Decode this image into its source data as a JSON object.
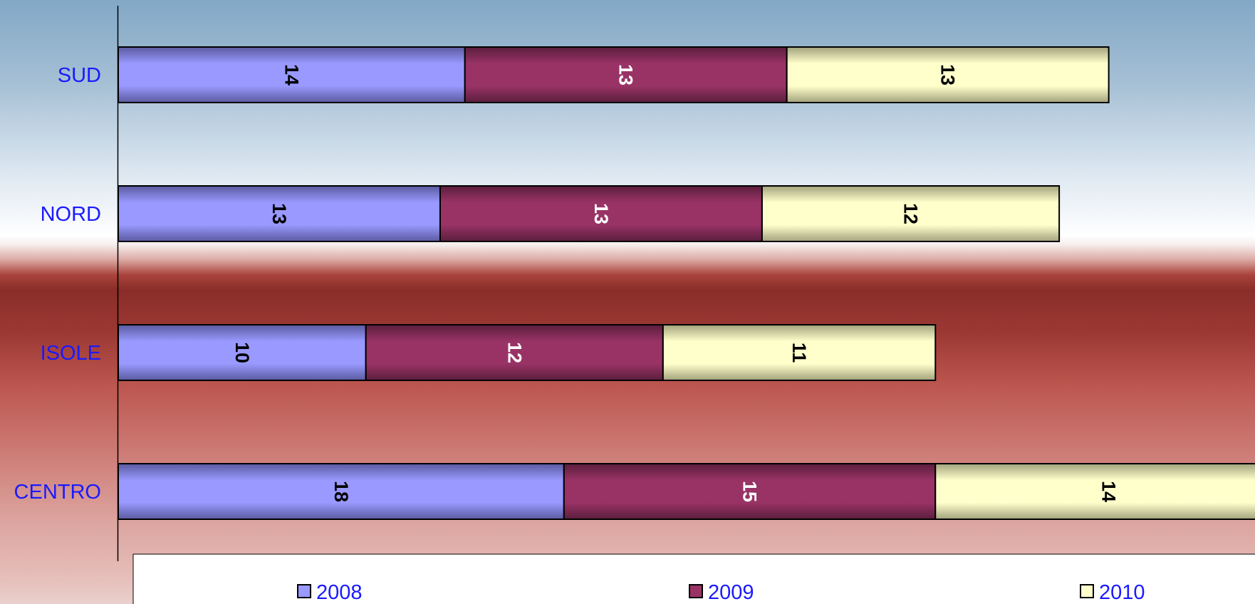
{
  "chart_data": {
    "type": "bar",
    "orientation": "horizontal",
    "stacked": true,
    "title": "",
    "xlabel": "",
    "ylabel": "",
    "categories": [
      "SUD",
      "NORD",
      "ISOLE",
      "CENTRO"
    ],
    "series": [
      {
        "name": "2008",
        "values": [
          14,
          13,
          10,
          18
        ],
        "color": "#9999ff",
        "label_color": "#000000"
      },
      {
        "name": "2009",
        "values": [
          13,
          13,
          12,
          15
        ],
        "color": "#993366",
        "label_color": "#ffffff"
      },
      {
        "name": "2010",
        "values": [
          13,
          12,
          11,
          14
        ],
        "color": "#ffffcc",
        "label_color": "#000000"
      }
    ],
    "xlim": [
      0,
      47
    ],
    "grid": false,
    "data_labels": true,
    "legend": {
      "position": "bottom",
      "entries": [
        "2008",
        "2009",
        "2010"
      ]
    }
  }
}
